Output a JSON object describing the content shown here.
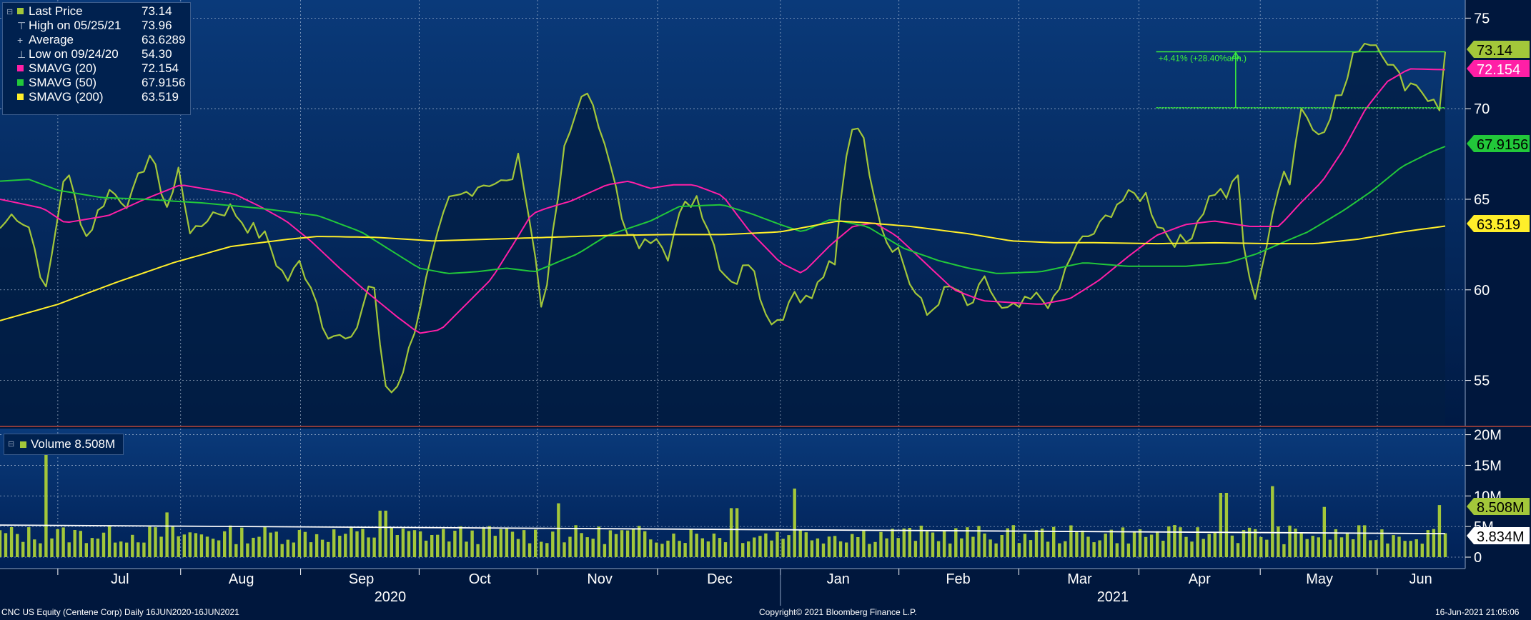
{
  "legend": {
    "last_price": {
      "label": "Last Price",
      "value": "73.14",
      "color": "#a3c73a"
    },
    "high": {
      "label": "High on 05/25/21",
      "value": "73.96"
    },
    "average": {
      "label": "Average",
      "value": "63.6289"
    },
    "low": {
      "label": "Low on 09/24/20",
      "value": "54.30"
    },
    "sma20": {
      "label": "SMAVG (20)",
      "value": "72.154",
      "color": "#ff1fa6"
    },
    "sma50": {
      "label": "SMAVG (50)",
      "value": "67.9156",
      "color": "#22c83a"
    },
    "sma200": {
      "label": "SMAVG (200)",
      "value": "63.519",
      "color": "#ffee2a"
    }
  },
  "volume_legend": {
    "label": "Volume 8.508M",
    "color": "#a3c73a"
  },
  "annotation": {
    "text": "+4.41% (+28.40%ann.)"
  },
  "footer": {
    "left": "CNC US Equity (Centene Corp)   Daily 16JUN2020-16JUN2021",
    "center": "Copyright© 2021 Bloomberg Finance L.P.",
    "right": "16-Jun-2021 21:05:06"
  },
  "chart_data": [
    {
      "type": "line",
      "title": "",
      "x_labels": [
        "Jul",
        "Aug",
        "Sep",
        "Oct",
        "Nov",
        "Dec",
        "Jan",
        "Feb",
        "Mar",
        "Apr",
        "May",
        "Jun"
      ],
      "year_labels": [
        "2020",
        "2021"
      ],
      "yticks": [
        "75",
        "70",
        "65",
        "60",
        "55"
      ],
      "ylim": [
        52.5,
        76
      ],
      "price_tags": [
        {
          "value": 73.14,
          "label": "73.14",
          "color": "#a3c73a"
        },
        {
          "value": 72.154,
          "label": "72.154",
          "color": "#ff1fa6"
        },
        {
          "value": 67.9156,
          "label": "67.9156",
          "color": "#22c83a"
        },
        {
          "value": 63.519,
          "label": "63.519",
          "color": "#ffee2a"
        }
      ],
      "series": [
        {
          "name": "Last Price",
          "color": "#a3c73a",
          "anchors": [
            [
              0,
              63.4
            ],
            [
              0.01,
              64.3
            ],
            [
              0.02,
              63.5
            ],
            [
              0.032,
              59.8
            ],
            [
              0.045,
              66.8
            ],
            [
              0.06,
              62.9
            ],
            [
              0.075,
              65.5
            ],
            [
              0.09,
              64.8
            ],
            [
              0.103,
              67.6
            ],
            [
              0.117,
              64.3
            ],
            [
              0.123,
              66.8
            ],
            [
              0.133,
              62.8
            ],
            [
              0.145,
              64.2
            ],
            [
              0.16,
              64.5
            ],
            [
              0.17,
              63.6
            ],
            [
              0.185,
              62.8
            ],
            [
              0.193,
              61.2
            ],
            [
              0.2,
              60.5
            ],
            [
              0.207,
              61.5
            ],
            [
              0.215,
              60.4
            ],
            [
              0.225,
              57.8
            ],
            [
              0.243,
              57.0
            ],
            [
              0.258,
              61.0
            ],
            [
              0.265,
              54.9
            ],
            [
              0.272,
              54.3
            ],
            [
              0.282,
              56.3
            ],
            [
              0.29,
              59.0
            ],
            [
              0.3,
              62.0
            ],
            [
              0.31,
              64.8
            ],
            [
              0.32,
              65.2
            ],
            [
              0.33,
              65.8
            ],
            [
              0.34,
              66.0
            ],
            [
              0.352,
              65.8
            ],
            [
              0.36,
              67.4
            ],
            [
              0.37,
              62.0
            ],
            [
              0.375,
              58.8
            ],
            [
              0.382,
              62.5
            ],
            [
              0.39,
              67.5
            ],
            [
              0.397,
              69.3
            ],
            [
              0.403,
              71.2
            ],
            [
              0.41,
              69.9
            ],
            [
              0.42,
              68.2
            ],
            [
              0.432,
              63.0
            ],
            [
              0.445,
              62.4
            ],
            [
              0.455,
              63.3
            ],
            [
              0.462,
              62.0
            ],
            [
              0.472,
              64.4
            ],
            [
              0.482,
              65.2
            ],
            [
              0.49,
              63.5
            ],
            [
              0.5,
              61.0
            ],
            [
              0.51,
              60.5
            ],
            [
              0.52,
              62.0
            ],
            [
              0.53,
              58.5
            ],
            [
              0.54,
              58.4
            ],
            [
              0.55,
              60.0
            ],
            [
              0.56,
              59.3
            ],
            [
              0.572,
              61.2
            ],
            [
              0.578,
              61.2
            ],
            [
              0.584,
              67.0
            ],
            [
              0.592,
              69.8
            ],
            [
              0.6,
              67.3
            ],
            [
              0.612,
              62.9
            ],
            [
              0.622,
              62.2
            ],
            [
              0.63,
              60.3
            ],
            [
              0.642,
              58.5
            ],
            [
              0.65,
              59.6
            ],
            [
              0.66,
              60.2
            ],
            [
              0.67,
              58.9
            ],
            [
              0.682,
              60.5
            ],
            [
              0.694,
              58.7
            ],
            [
              0.705,
              59.0
            ],
            [
              0.718,
              59.6
            ],
            [
              0.73,
              59.2
            ],
            [
              0.74,
              61.8
            ],
            [
              0.75,
              62.8
            ],
            [
              0.76,
              63.3
            ],
            [
              0.772,
              64.8
            ],
            [
              0.785,
              65.2
            ],
            [
              0.793,
              65.2
            ],
            [
              0.8,
              63.8
            ],
            [
              0.81,
              62.9
            ],
            [
              0.82,
              62.5
            ],
            [
              0.83,
              64.1
            ],
            [
              0.84,
              65.5
            ],
            [
              0.85,
              65.2
            ],
            [
              0.857,
              66.3
            ],
            [
              0.862,
              61.0
            ],
            [
              0.868,
              59.6
            ],
            [
              0.875,
              62.0
            ],
            [
              0.882,
              64.3
            ],
            [
              0.888,
              67.0
            ],
            [
              0.893,
              66.0
            ],
            [
              0.9,
              70.3
            ],
            [
              0.905,
              69.5
            ],
            [
              0.91,
              68.5
            ],
            [
              0.917,
              69.2
            ],
            [
              0.924,
              70.5
            ],
            [
              0.93,
              70.9
            ],
            [
              0.935,
              72.5
            ],
            [
              0.94,
              73.5
            ],
            [
              0.947,
              73.8
            ],
            [
              0.955,
              73.5
            ],
            [
              0.962,
              72.5
            ],
            [
              0.968,
              71.7
            ],
            [
              0.974,
              71.3
            ],
            [
              0.98,
              71.5
            ],
            [
              0.985,
              70.9
            ],
            [
              0.99,
              70.5
            ],
            [
              0.996,
              69.9
            ],
            [
              1.0,
              73.14
            ]
          ]
        },
        {
          "name": "SMAVG (20)",
          "color": "#ff1fa6",
          "anchors": [
            [
              0,
              65.0
            ],
            [
              0.03,
              64.5
            ],
            [
              0.045,
              63.7
            ],
            [
              0.075,
              64.1
            ],
            [
              0.1,
              65.0
            ],
            [
              0.125,
              65.8
            ],
            [
              0.14,
              65.6
            ],
            [
              0.162,
              65.3
            ],
            [
              0.18,
              64.6
            ],
            [
              0.198,
              63.8
            ],
            [
              0.215,
              62.7
            ],
            [
              0.235,
              61.2
            ],
            [
              0.255,
              59.8
            ],
            [
              0.275,
              58.5
            ],
            [
              0.29,
              57.6
            ],
            [
              0.305,
              57.8
            ],
            [
              0.32,
              59.0
            ],
            [
              0.34,
              60.6
            ],
            [
              0.355,
              62.5
            ],
            [
              0.368,
              64.2
            ],
            [
              0.378,
              64.5
            ],
            [
              0.395,
              64.9
            ],
            [
              0.42,
              65.8
            ],
            [
              0.435,
              66.0
            ],
            [
              0.45,
              65.6
            ],
            [
              0.465,
              65.8
            ],
            [
              0.48,
              65.8
            ],
            [
              0.5,
              65.2
            ],
            [
              0.518,
              63.3
            ],
            [
              0.54,
              61.5
            ],
            [
              0.555,
              60.9
            ],
            [
              0.575,
              62.5
            ],
            [
              0.59,
              63.5
            ],
            [
              0.605,
              63.7
            ],
            [
              0.62,
              63.0
            ],
            [
              0.64,
              61.5
            ],
            [
              0.66,
              60.0
            ],
            [
              0.68,
              59.4
            ],
            [
              0.7,
              59.3
            ],
            [
              0.72,
              59.2
            ],
            [
              0.74,
              59.5
            ],
            [
              0.76,
              60.5
            ],
            [
              0.78,
              61.8
            ],
            [
              0.8,
              63.0
            ],
            [
              0.82,
              63.6
            ],
            [
              0.84,
              63.8
            ],
            [
              0.865,
              63.5
            ],
            [
              0.885,
              63.5
            ],
            [
              0.9,
              64.8
            ],
            [
              0.915,
              66.0
            ],
            [
              0.93,
              67.8
            ],
            [
              0.945,
              70.0
            ],
            [
              0.96,
              71.5
            ],
            [
              0.975,
              72.2
            ],
            [
              1.0,
              72.154
            ]
          ]
        },
        {
          "name": "SMAVG (50)",
          "color": "#22c83a",
          "anchors": [
            [
              0,
              66.0
            ],
            [
              0.02,
              66.1
            ],
            [
              0.04,
              65.5
            ],
            [
              0.07,
              65.1
            ],
            [
              0.1,
              65.0
            ],
            [
              0.14,
              64.8
            ],
            [
              0.18,
              64.5
            ],
            [
              0.22,
              64.1
            ],
            [
              0.25,
              63.2
            ],
            [
              0.27,
              62.2
            ],
            [
              0.29,
              61.2
            ],
            [
              0.31,
              60.9
            ],
            [
              0.33,
              61.0
            ],
            [
              0.35,
              61.2
            ],
            [
              0.37,
              61.0
            ],
            [
              0.4,
              62.0
            ],
            [
              0.42,
              63.0
            ],
            [
              0.45,
              63.8
            ],
            [
              0.47,
              64.6
            ],
            [
              0.5,
              64.7
            ],
            [
              0.52,
              64.2
            ],
            [
              0.54,
              63.6
            ],
            [
              0.555,
              63.2
            ],
            [
              0.575,
              63.9
            ],
            [
              0.6,
              63.5
            ],
            [
              0.625,
              62.3
            ],
            [
              0.65,
              61.6
            ],
            [
              0.67,
              61.2
            ],
            [
              0.69,
              60.9
            ],
            [
              0.72,
              61.0
            ],
            [
              0.75,
              61.5
            ],
            [
              0.78,
              61.3
            ],
            [
              0.82,
              61.3
            ],
            [
              0.85,
              61.5
            ],
            [
              0.87,
              62.0
            ],
            [
              0.89,
              62.7
            ],
            [
              0.905,
              63.2
            ],
            [
              0.93,
              64.4
            ],
            [
              0.95,
              65.5
            ],
            [
              0.97,
              66.8
            ],
            [
              0.99,
              67.6
            ],
            [
              1.0,
              67.9156
            ]
          ]
        },
        {
          "name": "SMAVG (200)",
          "color": "#ffee2a",
          "anchors": [
            [
              0,
              58.3
            ],
            [
              0.04,
              59.2
            ],
            [
              0.08,
              60.4
            ],
            [
              0.12,
              61.5
            ],
            [
              0.16,
              62.4
            ],
            [
              0.2,
              62.8
            ],
            [
              0.22,
              62.95
            ],
            [
              0.26,
              62.9
            ],
            [
              0.3,
              62.7
            ],
            [
              0.34,
              62.8
            ],
            [
              0.38,
              62.9
            ],
            [
              0.42,
              63.0
            ],
            [
              0.46,
              63.05
            ],
            [
              0.5,
              63.05
            ],
            [
              0.54,
              63.2
            ],
            [
              0.58,
              63.8
            ],
            [
              0.6,
              63.7
            ],
            [
              0.63,
              63.5
            ],
            [
              0.67,
              63.1
            ],
            [
              0.7,
              62.7
            ],
            [
              0.73,
              62.6
            ],
            [
              0.76,
              62.6
            ],
            [
              0.8,
              62.55
            ],
            [
              0.84,
              62.6
            ],
            [
              0.88,
              62.55
            ],
            [
              0.91,
              62.55
            ],
            [
              0.94,
              62.8
            ],
            [
              0.97,
              63.2
            ],
            [
              1.0,
              63.519
            ]
          ]
        }
      ],
      "annotation_levels": {
        "high": 73.14,
        "base": 70.05,
        "start_frac": 0.8,
        "arrow_frac": 0.855
      }
    },
    {
      "type": "bar",
      "title": "",
      "yticks": [
        "20M",
        "15M",
        "10M",
        "5M",
        "0"
      ],
      "ylim": [
        0,
        21
      ],
      "price_tags": [
        {
          "value": 8.508,
          "label": "8.508M",
          "color": "#a3c73a"
        },
        {
          "value": 3.834,
          "label": "3.834M",
          "color": "#ffffff"
        }
      ],
      "spikes": [
        [
          0.033,
          18.5
        ],
        [
          0.115,
          7.3
        ],
        [
          0.265,
          7.6
        ],
        [
          0.388,
          8.8
        ],
        [
          0.55,
          11.2
        ],
        [
          0.508,
          8.0
        ],
        [
          0.847,
          10.5
        ],
        [
          0.88,
          11.6
        ],
        [
          0.915,
          8.2
        ],
        [
          0.995,
          8.508
        ]
      ],
      "base_volume": 3.5,
      "average_level": 3.834
    }
  ]
}
